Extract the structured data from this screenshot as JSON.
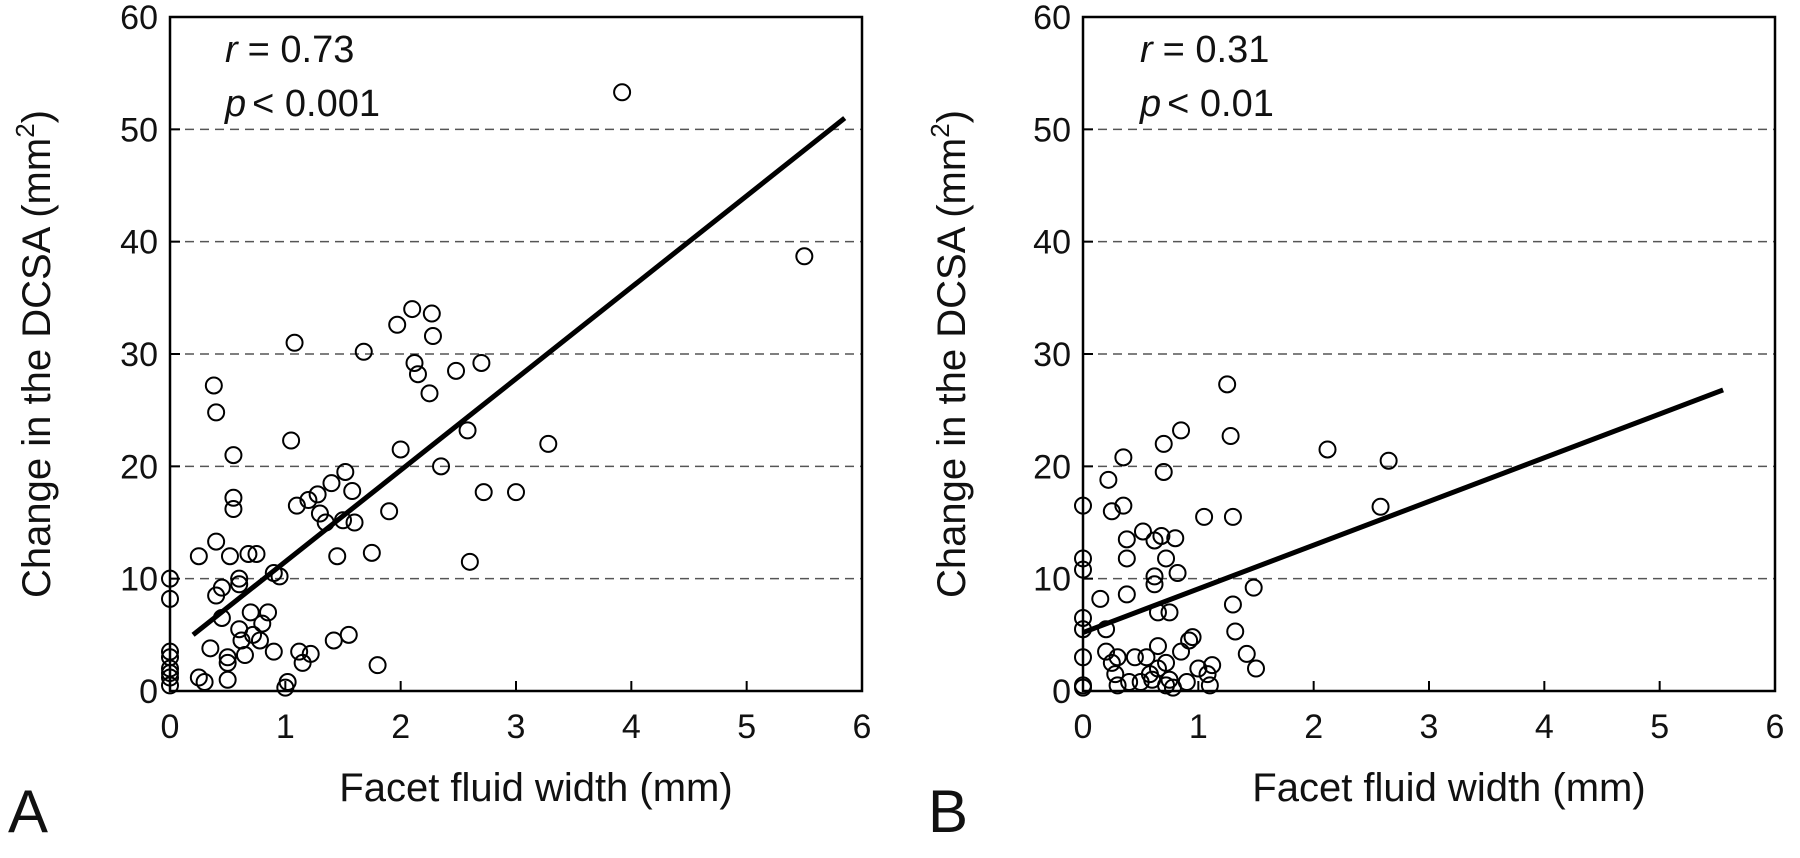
{
  "chart_data": [
    {
      "type": "scatter",
      "panel_label": "A",
      "xlabel": "Facet fluid width (mm)",
      "ylabel": "Change in the DCSA (mm",
      "ylabel_sup": "2",
      "ylabel_close": ")",
      "xlim": [
        0,
        6
      ],
      "ylim": [
        0,
        60
      ],
      "xticks": [
        "0",
        "1",
        "2",
        "3",
        "4",
        "5",
        "6"
      ],
      "yticks": [
        "0",
        "10",
        "20",
        "30",
        "40",
        "50",
        "60"
      ],
      "grid": "horizontal dashed",
      "stats": {
        "r_label": "r",
        "r_value": "= 0.73",
        "p_label": "p",
        "p_value": "< 0.001"
      },
      "trend_line": {
        "x": [
          0.2,
          5.85
        ],
        "y": [
          5,
          51
        ]
      },
      "points": [
        [
          0,
          10
        ],
        [
          0,
          8.2
        ],
        [
          0,
          3.5
        ],
        [
          0,
          3
        ],
        [
          0,
          2
        ],
        [
          0,
          1.6
        ],
        [
          0,
          1.2
        ],
        [
          0,
          0.5
        ],
        [
          0.25,
          1.2
        ],
        [
          0.25,
          12
        ],
        [
          0.3,
          0.8
        ],
        [
          0.35,
          3.8
        ],
        [
          0.38,
          27.2
        ],
        [
          0.4,
          24.8
        ],
        [
          0.4,
          13.3
        ],
        [
          0.4,
          8.5
        ],
        [
          0.45,
          9.2
        ],
        [
          0.45,
          6.5
        ],
        [
          0.5,
          3
        ],
        [
          0.5,
          2.5
        ],
        [
          0.5,
          1
        ],
        [
          0.52,
          12
        ],
        [
          0.55,
          21
        ],
        [
          0.55,
          17.2
        ],
        [
          0.55,
          16.2
        ],
        [
          0.6,
          10
        ],
        [
          0.6,
          9.5
        ],
        [
          0.6,
          5.5
        ],
        [
          0.62,
          4.5
        ],
        [
          0.65,
          3.2
        ],
        [
          0.68,
          12.2
        ],
        [
          0.7,
          7
        ],
        [
          0.72,
          5
        ],
        [
          0.75,
          12.2
        ],
        [
          0.78,
          4.5
        ],
        [
          0.8,
          6
        ],
        [
          0.85,
          7
        ],
        [
          0.9,
          3.5
        ],
        [
          0.9,
          10.5
        ],
        [
          0.95,
          10.2
        ],
        [
          1.0,
          0.3
        ],
        [
          1.02,
          0.8
        ],
        [
          1.05,
          22.3
        ],
        [
          1.08,
          31
        ],
        [
          1.1,
          16.5
        ],
        [
          1.12,
          3.5
        ],
        [
          1.15,
          2.5
        ],
        [
          1.2,
          17
        ],
        [
          1.22,
          3.3
        ],
        [
          1.28,
          17.5
        ],
        [
          1.3,
          15.8
        ],
        [
          1.35,
          15
        ],
        [
          1.4,
          18.5
        ],
        [
          1.42,
          4.5
        ],
        [
          1.45,
          12
        ],
        [
          1.5,
          15.2
        ],
        [
          1.52,
          19.5
        ],
        [
          1.55,
          5
        ],
        [
          1.58,
          17.8
        ],
        [
          1.6,
          15
        ],
        [
          1.68,
          30.2
        ],
        [
          1.75,
          12.3
        ],
        [
          1.8,
          2.3
        ],
        [
          1.9,
          16
        ],
        [
          1.97,
          32.6
        ],
        [
          2.0,
          21.5
        ],
        [
          2.1,
          34
        ],
        [
          2.12,
          29.2
        ],
        [
          2.15,
          28.2
        ],
        [
          2.25,
          26.5
        ],
        [
          2.27,
          33.6
        ],
        [
          2.28,
          31.6
        ],
        [
          2.35,
          20
        ],
        [
          2.48,
          28.5
        ],
        [
          2.58,
          23.2
        ],
        [
          2.6,
          11.5
        ],
        [
          2.7,
          29.2
        ],
        [
          2.72,
          17.7
        ],
        [
          3.0,
          17.7
        ],
        [
          3.28,
          22
        ],
        [
          3.92,
          53.3
        ],
        [
          5.5,
          38.7
        ]
      ]
    },
    {
      "type": "scatter",
      "panel_label": "B",
      "xlabel": "Facet fluid width (mm)",
      "ylabel": "Change in the DCSA (mm",
      "ylabel_sup": "2",
      "ylabel_close": ")",
      "xlim": [
        0,
        6
      ],
      "ylim": [
        0,
        60
      ],
      "xticks": [
        "0",
        "1",
        "2",
        "3",
        "4",
        "5",
        "6"
      ],
      "yticks": [
        "0",
        "10",
        "20",
        "30",
        "40",
        "50",
        "60"
      ],
      "grid": "horizontal dashed",
      "stats": {
        "r_label": "r",
        "r_value": "= 0.31",
        "p_label": "p",
        "p_value": "< 0.01"
      },
      "trend_line": {
        "x": [
          0,
          5.55
        ],
        "y": [
          5.2,
          26.8
        ]
      },
      "points": [
        [
          0,
          16.5
        ],
        [
          0,
          11.8
        ],
        [
          0,
          10.8
        ],
        [
          0,
          6.5
        ],
        [
          0,
          5.5
        ],
        [
          0,
          3
        ],
        [
          0,
          0.5
        ],
        [
          0,
          0.3
        ],
        [
          0.15,
          8.2
        ],
        [
          0.2,
          5.5
        ],
        [
          0.2,
          3.5
        ],
        [
          0.22,
          18.8
        ],
        [
          0.25,
          16
        ],
        [
          0.25,
          2.5
        ],
        [
          0.28,
          1.5
        ],
        [
          0.3,
          0.5
        ],
        [
          0.3,
          3
        ],
        [
          0.35,
          20.8
        ],
        [
          0.35,
          16.5
        ],
        [
          0.38,
          13.5
        ],
        [
          0.38,
          11.8
        ],
        [
          0.38,
          8.6
        ],
        [
          0.4,
          0.8
        ],
        [
          0.45,
          3
        ],
        [
          0.5,
          0.8
        ],
        [
          0.52,
          14.2
        ],
        [
          0.55,
          3
        ],
        [
          0.58,
          1.5
        ],
        [
          0.6,
          1
        ],
        [
          0.62,
          13.4
        ],
        [
          0.62,
          10.2
        ],
        [
          0.62,
          9.5
        ],
        [
          0.65,
          7
        ],
        [
          0.65,
          4
        ],
        [
          0.65,
          2
        ],
        [
          0.68,
          13.8
        ],
        [
          0.7,
          22
        ],
        [
          0.7,
          19.5
        ],
        [
          0.72,
          11.8
        ],
        [
          0.72,
          2.5
        ],
        [
          0.72,
          0.5
        ],
        [
          0.75,
          7
        ],
        [
          0.75,
          1
        ],
        [
          0.78,
          0.3
        ],
        [
          0.8,
          13.6
        ],
        [
          0.82,
          10.5
        ],
        [
          0.85,
          23.2
        ],
        [
          0.85,
          3.5
        ],
        [
          0.9,
          0.8
        ],
        [
          0.92,
          4.5
        ],
        [
          0.95,
          4.8
        ],
        [
          1.0,
          2
        ],
        [
          1.05,
          15.5
        ],
        [
          1.08,
          1.5
        ],
        [
          1.1,
          0.5
        ],
        [
          1.12,
          2.3
        ],
        [
          1.25,
          27.3
        ],
        [
          1.28,
          22.7
        ],
        [
          1.3,
          15.5
        ],
        [
          1.3,
          7.7
        ],
        [
          1.32,
          5.3
        ],
        [
          1.42,
          3.3
        ],
        [
          1.48,
          9.2
        ],
        [
          1.5,
          2
        ],
        [
          2.12,
          21.5
        ],
        [
          2.58,
          16.4
        ],
        [
          2.65,
          20.5
        ]
      ]
    }
  ]
}
